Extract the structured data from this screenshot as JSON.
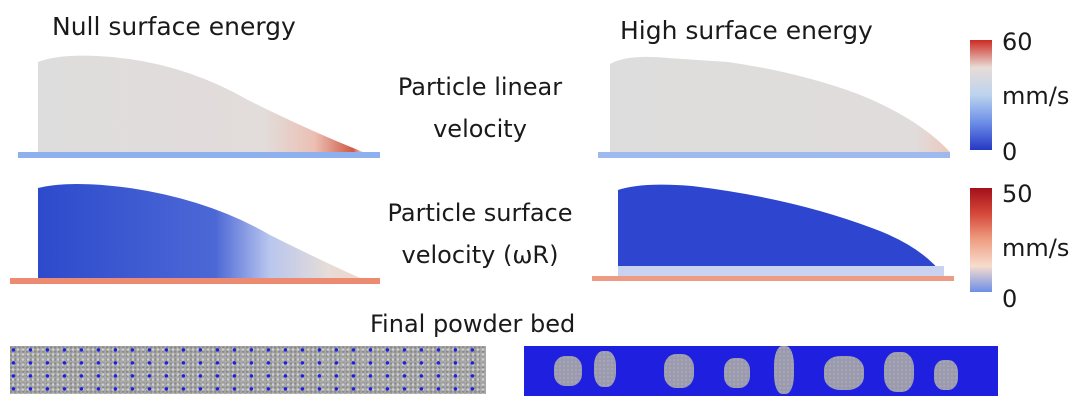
{
  "headers": {
    "left": "Null surface energy",
    "right": "High surface energy"
  },
  "rows": [
    {
      "label_line1": "Particle linear",
      "label_line2": "velocity"
    },
    {
      "label_line1": "Particle surface",
      "label_line2": "velocity (ωR)"
    }
  ],
  "bottom_label": "Final powder bed",
  "colorbars": [
    {
      "max": "60",
      "unit": "mm/s",
      "min": "0",
      "colors": [
        "#cc2b22",
        "#e8dcd6",
        "#bcd4ee",
        "#6d8ee8",
        "#2638c4"
      ]
    },
    {
      "max": "50",
      "unit": "mm/s",
      "min": "0",
      "colors": [
        "#a3101b",
        "#d6493a",
        "#ef9f84",
        "#f7dccd",
        "#6d8ee8"
      ]
    }
  ],
  "colors": {
    "particle_gray": "#dcdcdc",
    "particle_blue": "#2b44cc",
    "particle_red": "#d9533f",
    "bed_gray": "#a8a8a8",
    "bed_blue": "#1f1fe0"
  }
}
